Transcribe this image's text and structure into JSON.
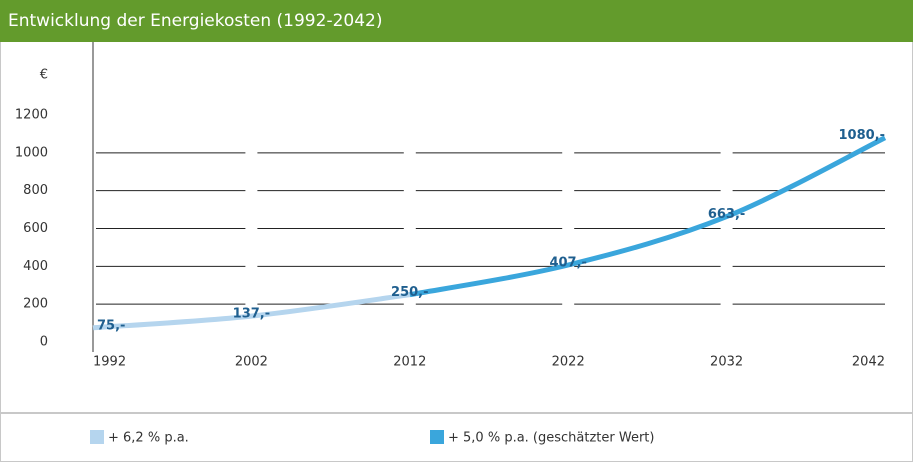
{
  "chart_data": {
    "type": "line",
    "title": "Entwicklung der Energiekosten (1992-2042)",
    "y_label": "€",
    "x": [
      1992,
      2002,
      2012,
      2022,
      2032,
      2042
    ],
    "xlim": [
      1992,
      2042
    ],
    "xticks": [
      1992,
      2002,
      2012,
      2022,
      2032,
      2042
    ],
    "ylim": [
      0,
      1200
    ],
    "yticks": [
      0,
      200,
      400,
      600,
      800,
      1000,
      1200
    ],
    "grid": true,
    "series": [
      {
        "name": "+ 6,2 % p.a.",
        "color": "#b5d5ee",
        "values": [
          75,
          137,
          250,
          null,
          null,
          null
        ],
        "value_labels": [
          "75,-",
          "137,-",
          "250,-",
          null,
          null,
          null
        ]
      },
      {
        "name": "+ 5,0 % p.a. (geschätzter Wert)",
        "color": "#3aa6dc",
        "values": [
          null,
          null,
          250,
          407,
          663,
          1080
        ],
        "value_labels": [
          null,
          null,
          null,
          "407,-",
          "663,-",
          "1080,-"
        ]
      }
    ]
  }
}
